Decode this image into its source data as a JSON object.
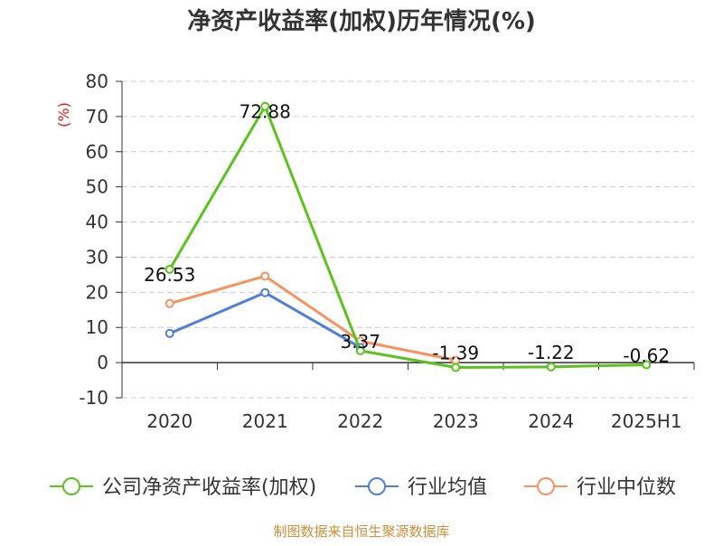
{
  "chart_data": {
    "type": "line",
    "title": "净资产收益率(加权)历年情况(%)",
    "ylabel": "(%)",
    "xlabel": "",
    "categories": [
      "2020",
      "2021",
      "2022",
      "2023",
      "2024",
      "2025H1"
    ],
    "ylim": [
      -10,
      80
    ],
    "yticks": [
      "80",
      "70",
      "60",
      "50",
      "40",
      "30",
      "20",
      "10",
      "0",
      "-10"
    ],
    "grid": true,
    "legend_position": "bottom",
    "series": [
      {
        "name": "公司净资产收益率(加权)",
        "color": "#5cc21d",
        "values": [
          26.53,
          72.88,
          3.37,
          -1.39,
          -1.22,
          -0.62
        ],
        "labels": [
          "26.53",
          "72.88",
          "3.37",
          "-1.39",
          "-1.22",
          "-0.62"
        ]
      },
      {
        "name": "行业均值",
        "color": "#4f7fd6",
        "values": [
          8.3,
          19.9,
          4.3,
          null,
          null,
          null
        ]
      },
      {
        "name": "行业中位数",
        "color": "#f7925f",
        "values": [
          16.8,
          24.6,
          6.1,
          0.7,
          null,
          null
        ]
      }
    ]
  },
  "source_note": "制图数据来自恒生聚源数据库"
}
